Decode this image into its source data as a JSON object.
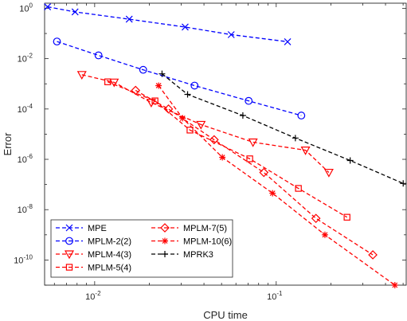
{
  "chart_data": {
    "type": "line",
    "xscale": "log",
    "yscale": "log",
    "xlabel": "CPU time",
    "ylabel": "Error",
    "xlim": [
      0.0053,
      0.52
    ],
    "ylim": [
      1e-11,
      1.6
    ],
    "x_major_ticks": [
      0.01,
      0.1
    ],
    "x_tick_labels": [
      {
        "base": "10",
        "exp": "-2"
      },
      {
        "base": "10",
        "exp": "-1"
      }
    ],
    "y_major_ticks": [
      1,
      0.01,
      0.0001,
      1e-06,
      1e-08,
      1e-10
    ],
    "y_tick_labels": [
      {
        "base": "10",
        "exp": "0"
      },
      {
        "base": "10",
        "exp": "-2"
      },
      {
        "base": "10",
        "exp": "-4"
      },
      {
        "base": "10",
        "exp": "-6"
      },
      {
        "base": "10",
        "exp": "-8"
      },
      {
        "base": "10",
        "exp": "-10"
      }
    ],
    "legend_placement": "bottom-left",
    "grid": false,
    "series": [
      {
        "name": "MPE",
        "color": "#0000ff",
        "marker": "x",
        "x": [
          0.0055,
          0.0078,
          0.0155,
          0.0315,
          0.0565,
          0.1155
        ],
        "y": [
          1.15,
          0.72,
          0.37,
          0.18,
          0.09,
          0.047
        ]
      },
      {
        "name": "MPLM-2(2)",
        "color": "#0000ff",
        "marker": "circle",
        "x": [
          0.0062,
          0.0105,
          0.0185,
          0.0355,
          0.0705,
          0.1375
        ],
        "y": [
          0.048,
          0.0135,
          0.0036,
          0.00085,
          0.00021,
          5.5e-05
        ]
      },
      {
        "name": "MPLM-4(3)",
        "color": "#ff0000",
        "marker": "triangle-down",
        "x": [
          0.0085,
          0.0128,
          0.0205,
          0.0385,
          0.0745,
          0.145,
          0.195
        ],
        "y": [
          0.0023,
          0.00115,
          0.00018,
          2.4e-05,
          4.8e-06,
          2.3e-06,
          3e-07
        ]
      },
      {
        "name": "MPLM-5(4)",
        "color": "#ff0000",
        "marker": "square",
        "x": [
          0.0118,
          0.0215,
          0.0335,
          0.0715,
          0.1325,
          0.2455
        ],
        "y": [
          0.0012,
          0.00021,
          1.45e-05,
          1.05e-06,
          7e-08,
          5e-09
        ]
      },
      {
        "name": "MPLM-7(5)",
        "color": "#ff0000",
        "marker": "diamond",
        "x": [
          0.0168,
          0.0255,
          0.0455,
          0.0855,
          0.1655,
          0.3405
        ],
        "y": [
          0.00055,
          0.0001,
          6e-06,
          3e-07,
          4.5e-09,
          1.6e-10
        ]
      },
      {
        "name": "MPLM-10(6)",
        "color": "#ff0000",
        "marker": "asterisk",
        "x": [
          0.0225,
          0.0305,
          0.0505,
          0.0955,
          0.1855,
          0.4505
        ],
        "y": [
          0.00085,
          4.3e-05,
          1.2e-06,
          4.5e-08,
          1e-09,
          1e-11
        ]
      },
      {
        "name": "MPRK3",
        "color": "#000000",
        "marker": "plus",
        "x": [
          0.0235,
          0.0325,
          0.0655,
          0.1275,
          0.2555,
          0.5005
        ],
        "y": [
          0.0025,
          0.00038,
          5.5e-05,
          7e-06,
          9e-07,
          1.1e-07
        ]
      }
    ]
  }
}
